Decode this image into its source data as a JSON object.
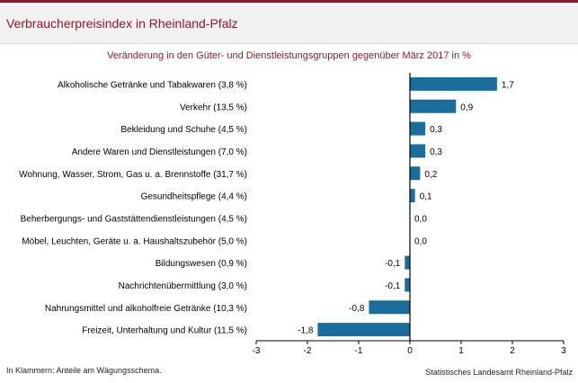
{
  "header": {
    "title": "Verbraucherpreisindex in Rheinland-Pfalz"
  },
  "footer": {
    "note": "In Klammern: Anteile am Wägungsschema.",
    "source": "Statistisches Landesamt Rheinland-Pfalz"
  },
  "colors": {
    "bar": "#1a6e99",
    "accent": "#8b1a2b",
    "axis": "#000000"
  },
  "chart_data": {
    "type": "bar",
    "orientation": "horizontal",
    "title": "Veränderung in den Güter- und Dienstleistungsgruppen gegenüber März 2017 in %",
    "xlabel": "",
    "ylabel": "",
    "xlim": [
      -3,
      3
    ],
    "xticks": [
      -3,
      -2,
      -1,
      0,
      1,
      2,
      3
    ],
    "grid": false,
    "categories": [
      "Alkoholische Getränke und Tabakwaren (3,8 %)",
      "Verkehr (13,5 %)",
      "Bekleidung und Schuhe (4,5 %)",
      "Andere Waren und Dienstleistungen (7,0 %)",
      "Wohnung, Wasser, Strom, Gas u. a. Brennstoffe (31,7 %)",
      "Gesundheitspflege (4,4 %)",
      "Beherbergungs- und Gaststättendienstleistungen (4,5 %)",
      "Möbel, Leuchten, Geräte u. a. Haushaltszubehör (5,0 %)",
      "Bildungswesen (0,9 %)",
      "Nachrichtenübermittlung (3,0 %)",
      "Nahrungsmittel und alkoholfreie Getränke (10,3 %)",
      "Freizeit, Unterhaltung und Kultur (11,5 %)"
    ],
    "values": [
      1.7,
      0.9,
      0.3,
      0.3,
      0.2,
      0.1,
      0.0,
      0.0,
      -0.1,
      -0.1,
      -0.8,
      -1.8
    ],
    "value_labels": [
      "1,7",
      "0,9",
      "0,3",
      "0,3",
      "0,2",
      "0,1",
      "0,0",
      "0,0",
      "-0,1",
      "-0,1",
      "-0,8",
      "-1,8"
    ]
  }
}
